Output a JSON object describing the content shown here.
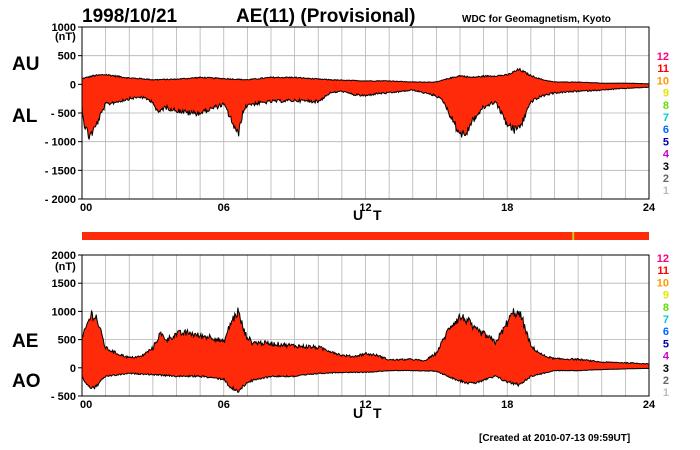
{
  "header": {
    "date": "1998/10/21",
    "index": "AE(11) (Provisional)",
    "source": "WDC for Geomagnetism, Kyoto",
    "created": "[Created at 2010-07-13 09:59UT]"
  },
  "colors": {
    "fill": "#ff2a0a",
    "trace": "#000000",
    "grid": "#b4b4b4",
    "bar": "#ff2a0a",
    "bar_mark": "#c8c814"
  },
  "station_counts": {
    "labels": [
      "12",
      "11",
      "10",
      "9",
      "8",
      "7",
      "6",
      "5",
      "4",
      "3",
      "2",
      "1"
    ],
    "colors": [
      "#ff0080",
      "#ff0000",
      "#ff9900",
      "#e6e600",
      "#66dd00",
      "#00cccc",
      "#0066ff",
      "#0000aa",
      "#cc00cc",
      "#000000",
      "#666666",
      "#bbbbbb"
    ]
  },
  "status_bar": {
    "marks": [
      {
        "hour": 20.75
      }
    ]
  },
  "chart_data": [
    {
      "type": "area",
      "panel": "AU/AL",
      "upper_label": "AU",
      "lower_label": "AL",
      "ylabel": "(nT)",
      "xlabel": "U T",
      "ylim": [
        -2000,
        1000
      ],
      "yticks": [
        1000,
        500,
        0,
        -500,
        -1000,
        -1500,
        -2000
      ],
      "ytick_labels": [
        "1000",
        "500",
        "0",
        "- 500",
        "- 1000",
        "- 1500",
        "- 2000"
      ],
      "xlim": [
        0,
        24
      ],
      "xticks": [
        0,
        6,
        12,
        18,
        24
      ],
      "xtick_labels": [
        "00",
        "06",
        "12",
        "18",
        "24"
      ],
      "series": [
        {
          "role": "upper",
          "x": [
            0,
            0.2,
            0.5,
            1,
            1.5,
            2,
            2.5,
            3,
            4,
            5,
            6,
            6.5,
            7,
            8,
            9,
            10,
            11,
            12,
            13,
            14,
            15,
            15.5,
            16,
            16.5,
            17,
            17.5,
            18,
            18.5,
            19,
            19.5,
            20,
            21,
            22,
            23,
            24
          ],
          "values": [
            100,
            120,
            150,
            170,
            140,
            110,
            100,
            80,
            90,
            120,
            100,
            90,
            80,
            120,
            120,
            90,
            70,
            60,
            60,
            40,
            40,
            100,
            150,
            120,
            140,
            150,
            160,
            260,
            150,
            80,
            40,
            40,
            20,
            20,
            10
          ]
        },
        {
          "role": "lower",
          "x": [
            0,
            0.1,
            0.3,
            0.5,
            1,
            1.5,
            2,
            2.5,
            3,
            3.2,
            3.5,
            4,
            4.5,
            5,
            5.5,
            6,
            6.3,
            6.6,
            6.8,
            7,
            7.5,
            8,
            9,
            10,
            10.5,
            11,
            11.5,
            12,
            12.5,
            13,
            14,
            15,
            15.3,
            15.6,
            15.9,
            16.2,
            16.5,
            17,
            17.5,
            18,
            18.3,
            18.6,
            19,
            19.5,
            20,
            21,
            22,
            23,
            24
          ],
          "values": [
            -400,
            -700,
            -900,
            -800,
            -350,
            -300,
            -250,
            -220,
            -300,
            -500,
            -400,
            -450,
            -500,
            -500,
            -420,
            -350,
            -600,
            -900,
            -500,
            -350,
            -330,
            -300,
            -280,
            -300,
            -150,
            -120,
            -180,
            -200,
            -160,
            -150,
            -100,
            -200,
            -300,
            -550,
            -800,
            -900,
            -650,
            -400,
            -300,
            -700,
            -800,
            -700,
            -300,
            -200,
            -150,
            -120,
            -100,
            -70,
            -50
          ]
        }
      ]
    },
    {
      "type": "area",
      "panel": "AE/AO",
      "upper_label": "AE",
      "lower_label": "AO",
      "ylabel": "(nT)",
      "xlabel": "U T",
      "ylim": [
        -500,
        2000
      ],
      "yticks": [
        2000,
        1500,
        1000,
        500,
        0,
        -500
      ],
      "ytick_labels": [
        "2000",
        "1500",
        "1000",
        "500",
        "0",
        "- 500"
      ],
      "xlim": [
        0,
        24
      ],
      "xticks": [
        0,
        6,
        12,
        18,
        24
      ],
      "xtick_labels": [
        "00",
        "06",
        "12",
        "18",
        "24"
      ],
      "series": [
        {
          "role": "upper",
          "x": [
            0,
            0.2,
            0.4,
            0.6,
            1,
            1.5,
            2,
            2.5,
            3,
            3.3,
            3.6,
            4,
            4.5,
            5,
            5.5,
            6,
            6.3,
            6.6,
            6.9,
            7.2,
            8,
            9,
            10,
            10.5,
            11,
            11.5,
            12,
            12.5,
            13,
            14,
            14.5,
            15,
            15.3,
            15.6,
            16,
            16.3,
            16.6,
            17,
            17.5,
            17.8,
            18,
            18.3,
            18.6,
            19,
            19.5,
            20,
            21,
            22,
            23,
            24
          ],
          "values": [
            500,
            750,
            950,
            900,
            350,
            250,
            180,
            200,
            350,
            600,
            500,
            600,
            620,
            560,
            550,
            450,
            800,
            1000,
            600,
            450,
            430,
            390,
            360,
            300,
            220,
            200,
            250,
            220,
            140,
            150,
            120,
            260,
            500,
            750,
            900,
            850,
            680,
            600,
            450,
            650,
            800,
            1000,
            900,
            380,
            220,
            160,
            150,
            100,
            90,
            70
          ]
        },
        {
          "role": "lower",
          "x": [
            0,
            0.2,
            0.5,
            1,
            2,
            3,
            4,
            5,
            6,
            6.3,
            6.6,
            7,
            8,
            9,
            10,
            11,
            12,
            13,
            14,
            15,
            15.5,
            16,
            16.5,
            17,
            17.5,
            18,
            18.5,
            19,
            20,
            21,
            22,
            23,
            24
          ],
          "values": [
            -150,
            -300,
            -370,
            -150,
            -100,
            -120,
            -150,
            -150,
            -200,
            -350,
            -420,
            -250,
            -150,
            -150,
            -100,
            -80,
            -80,
            -50,
            -50,
            -60,
            -150,
            -230,
            -280,
            -220,
            -150,
            -250,
            -300,
            -150,
            -50,
            -50,
            -30,
            -20,
            -10
          ]
        }
      ]
    }
  ]
}
